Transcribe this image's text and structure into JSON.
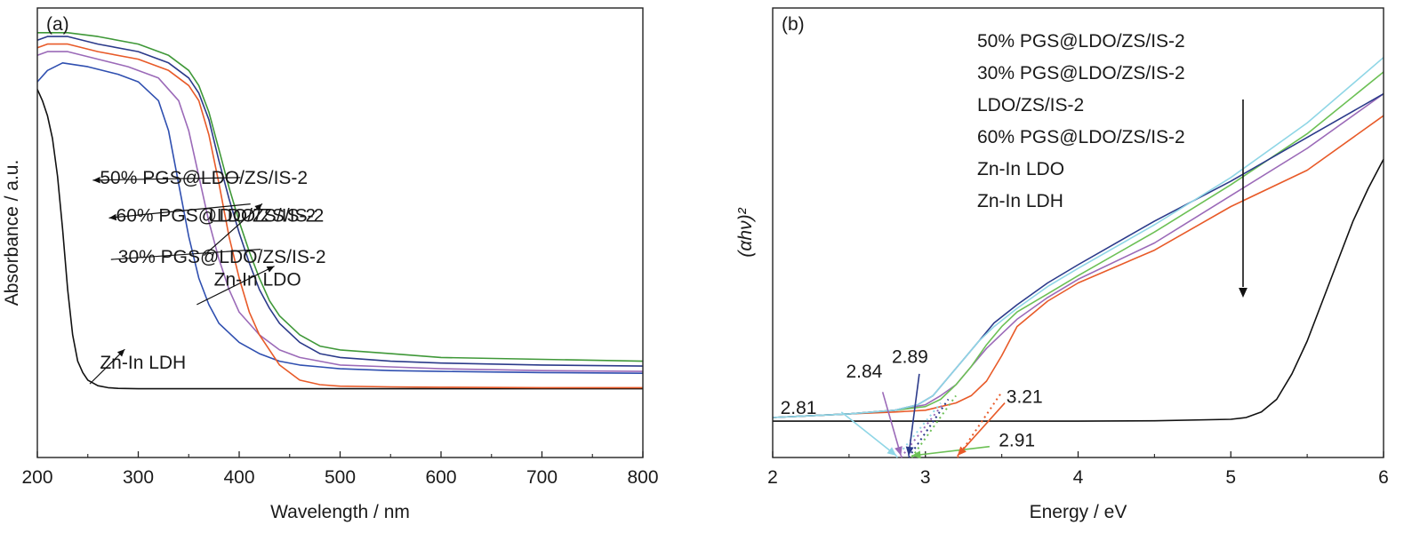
{
  "chart_data": [
    {
      "panel": "(a)",
      "type": "line",
      "xlabel": "Wavelength / nm",
      "ylabel": "Absorbance / a.u.",
      "xlim": [
        200,
        800
      ],
      "ylim": [
        0,
        1.0
      ],
      "xticks": [
        "200",
        "300",
        "400",
        "500",
        "600",
        "700",
        "800"
      ],
      "y_tick_labels_shown": false,
      "series": [
        {
          "key": "ldh",
          "color": "#111111",
          "x": [
            200,
            205,
            210,
            215,
            220,
            225,
            230,
            235,
            240,
            245,
            250,
            260,
            270,
            280,
            300,
            320,
            350,
            400,
            500,
            600,
            700,
            800
          ],
          "y": [
            0.85,
            0.82,
            0.78,
            0.72,
            0.62,
            0.48,
            0.32,
            0.2,
            0.13,
            0.1,
            0.08,
            0.065,
            0.06,
            0.058,
            0.057,
            0.057,
            0.057,
            0.057,
            0.057,
            0.057,
            0.057,
            0.057
          ]
        },
        {
          "key": "ldo",
          "color": "#2f4fb0",
          "x": [
            200,
            210,
            225,
            250,
            280,
            300,
            320,
            330,
            340,
            350,
            360,
            370,
            380,
            400,
            420,
            440,
            460,
            480,
            500,
            550,
            600,
            700,
            800
          ],
          "y": [
            0.87,
            0.9,
            0.92,
            0.91,
            0.89,
            0.87,
            0.82,
            0.74,
            0.6,
            0.46,
            0.35,
            0.28,
            0.23,
            0.18,
            0.15,
            0.13,
            0.12,
            0.115,
            0.11,
            0.105,
            0.103,
            0.1,
            0.098
          ]
        },
        {
          "key": "ldozs",
          "color": "#9b6ab8",
          "x": [
            200,
            210,
            230,
            260,
            290,
            320,
            340,
            350,
            360,
            370,
            380,
            390,
            400,
            420,
            440,
            460,
            480,
            500,
            550,
            600,
            700,
            800
          ],
          "y": [
            0.94,
            0.95,
            0.95,
            0.93,
            0.91,
            0.88,
            0.82,
            0.74,
            0.62,
            0.5,
            0.4,
            0.32,
            0.26,
            0.2,
            0.16,
            0.14,
            0.13,
            0.12,
            0.115,
            0.11,
            0.105,
            0.103
          ]
        },
        {
          "key": "p30",
          "color": "#e85a28",
          "x": [
            200,
            210,
            230,
            260,
            300,
            330,
            350,
            360,
            370,
            380,
            390,
            400,
            410,
            420,
            440,
            460,
            480,
            500,
            550,
            600,
            700,
            800
          ],
          "y": [
            0.96,
            0.97,
            0.97,
            0.95,
            0.93,
            0.9,
            0.86,
            0.82,
            0.73,
            0.6,
            0.46,
            0.35,
            0.26,
            0.2,
            0.12,
            0.08,
            0.068,
            0.064,
            0.062,
            0.061,
            0.06,
            0.06
          ]
        },
        {
          "key": "p60",
          "color": "#2b3a8a",
          "x": [
            200,
            210,
            230,
            260,
            300,
            330,
            350,
            360,
            370,
            380,
            390,
            400,
            410,
            420,
            430,
            440,
            460,
            480,
            500,
            550,
            600,
            700,
            800
          ],
          "y": [
            0.98,
            0.99,
            0.99,
            0.97,
            0.95,
            0.92,
            0.88,
            0.84,
            0.77,
            0.66,
            0.56,
            0.47,
            0.39,
            0.32,
            0.27,
            0.23,
            0.18,
            0.15,
            0.14,
            0.13,
            0.125,
            0.12,
            0.117
          ]
        },
        {
          "key": "p50",
          "color": "#3f9838",
          "x": [
            200,
            210,
            230,
            260,
            300,
            330,
            350,
            360,
            370,
            380,
            390,
            400,
            410,
            420,
            430,
            440,
            460,
            480,
            500,
            550,
            600,
            700,
            800
          ],
          "y": [
            1.0,
            1.0,
            1.0,
            0.99,
            0.97,
            0.94,
            0.9,
            0.86,
            0.79,
            0.69,
            0.59,
            0.5,
            0.42,
            0.35,
            0.29,
            0.25,
            0.2,
            0.17,
            0.16,
            0.15,
            0.14,
            0.135,
            0.13
          ]
        }
      ],
      "annotations": [
        {
          "key": "p50",
          "text": "50% PGS@LDO/ZS/IS-2",
          "x": 262,
          "y": 0.6,
          "ax": 410,
          "ay": 0.64
        },
        {
          "key": "p60",
          "text": "60% PGS@LDO/ZS/IS-2",
          "x": 278,
          "y": 0.5,
          "ax": 420,
          "ay": 0.57
        },
        {
          "key": "p30",
          "text": "30% PGS@LDO/ZS/IS-2",
          "x": 280,
          "y": 0.39,
          "ax": 430,
          "ay": 0.45
        },
        {
          "key": "ldozs",
          "text": "LDO/ZS/IS-2",
          "x": 370,
          "y": 0.5,
          "ax": 365,
          "ay": 0.41
        },
        {
          "key": "ldo",
          "text": "Zn-In LDO",
          "x": 375,
          "y": 0.33,
          "ax": 358,
          "ay": 0.28
        },
        {
          "key": "ldh",
          "text": "Zn-In LDH",
          "x": 262,
          "y": 0.11,
          "ax": 252,
          "ay": 0.07
        }
      ]
    },
    {
      "panel": "(b)",
      "type": "line",
      "xlabel": "Energy / eV",
      "ylabel": "(αhν)²",
      "xlim": [
        2,
        6
      ],
      "ylim": [
        -0.1,
        1.0
      ],
      "xticks": [
        "2",
        "3",
        "4",
        "5",
        "6"
      ],
      "y_tick_labels_shown": false,
      "legend_text": [
        "50% PGS@LDO/ZS/IS-2",
        "30% PGS@LDO/ZS/IS-2",
        "LDO/ZS/IS-2",
        "60% PGS@LDO/ZS/IS-2",
        "Zn-In LDO",
        "Zn-In LDH"
      ],
      "trend_arrow_direction": "down",
      "series": [
        {
          "key": "ldh",
          "color": "#111111",
          "x": [
            2,
            2.5,
            3,
            3.5,
            4,
            4.5,
            5,
            5.1,
            5.2,
            5.3,
            5.4,
            5.5,
            5.6,
            5.7,
            5.8,
            5.9,
            6
          ],
          "y": [
            0.0,
            0.0,
            0.0,
            0.0,
            0.0,
            0.001,
            0.005,
            0.01,
            0.025,
            0.06,
            0.13,
            0.22,
            0.33,
            0.44,
            0.55,
            0.64,
            0.72
          ]
        },
        {
          "key": "ldo",
          "color": "#e85a28",
          "x": [
            2,
            2.5,
            2.8,
            3,
            3.2,
            3.3,
            3.4,
            3.5,
            3.6,
            3.8,
            4,
            4.5,
            5,
            5.5,
            6
          ],
          "y": [
            0.01,
            0.02,
            0.025,
            0.03,
            0.05,
            0.07,
            0.11,
            0.18,
            0.26,
            0.33,
            0.38,
            0.47,
            0.59,
            0.69,
            0.84
          ]
        },
        {
          "key": "p60",
          "color": "#9b6ab8",
          "x": [
            2,
            2.5,
            2.8,
            3,
            3.1,
            3.2,
            3.3,
            3.4,
            3.5,
            3.6,
            3.8,
            4,
            4.5,
            5,
            5.5,
            6
          ],
          "y": [
            0.01,
            0.02,
            0.03,
            0.045,
            0.07,
            0.1,
            0.15,
            0.2,
            0.24,
            0.28,
            0.34,
            0.39,
            0.49,
            0.62,
            0.75,
            0.9
          ]
        },
        {
          "key": "ldozs",
          "color": "#6cc055",
          "x": [
            2,
            2.5,
            2.8,
            3,
            3.1,
            3.2,
            3.3,
            3.4,
            3.5,
            3.6,
            3.8,
            4,
            4.5,
            5,
            5.5,
            6
          ],
          "y": [
            0.01,
            0.02,
            0.03,
            0.04,
            0.06,
            0.1,
            0.15,
            0.21,
            0.26,
            0.3,
            0.35,
            0.4,
            0.52,
            0.65,
            0.79,
            0.96
          ]
        },
        {
          "key": "p30",
          "color": "#2b3a8a",
          "x": [
            2,
            2.5,
            2.8,
            2.95,
            3.05,
            3.15,
            3.25,
            3.35,
            3.45,
            3.6,
            3.8,
            4,
            4.5,
            5,
            5.5,
            6
          ],
          "y": [
            0.01,
            0.02,
            0.03,
            0.045,
            0.07,
            0.12,
            0.17,
            0.22,
            0.27,
            0.32,
            0.38,
            0.43,
            0.55,
            0.66,
            0.78,
            0.9
          ]
        },
        {
          "key": "p50",
          "color": "#8fd6e6",
          "x": [
            2,
            2.5,
            2.8,
            2.95,
            3.05,
            3.15,
            3.25,
            3.35,
            3.45,
            3.6,
            3.8,
            4,
            4.5,
            5,
            5.5,
            6
          ],
          "y": [
            0.01,
            0.02,
            0.03,
            0.045,
            0.07,
            0.12,
            0.17,
            0.22,
            0.26,
            0.31,
            0.37,
            0.42,
            0.54,
            0.67,
            0.82,
            1.0
          ]
        }
      ],
      "tangents": [
        {
          "color": "#8fd6e6",
          "x1": 2.81,
          "y1": -0.1,
          "x2": 3.1,
          "y2": 0.05
        },
        {
          "color": "#9b6ab8",
          "x1": 2.84,
          "y1": -0.1,
          "x2": 3.12,
          "y2": 0.05
        },
        {
          "color": "#2b3a8a",
          "x1": 2.89,
          "y1": -0.1,
          "x2": 3.15,
          "y2": 0.06
        },
        {
          "color": "#6cc055",
          "x1": 2.91,
          "y1": -0.1,
          "x2": 3.2,
          "y2": 0.07
        },
        {
          "color": "#e85a28",
          "x1": 3.21,
          "y1": -0.1,
          "x2": 3.5,
          "y2": 0.08
        }
      ],
      "gap_labels": [
        {
          "text": "2.81",
          "color": "#8fd6e6",
          "tx": 2.05,
          "ty": 0.02,
          "ax": 2.81,
          "ay": -0.1,
          "sx": 2.45,
          "sy": 0.025
        },
        {
          "text": "2.84",
          "color": "#9b6ab8",
          "tx": 2.48,
          "ty": 0.12,
          "ax": 2.84,
          "ay": -0.1,
          "sx": 2.72,
          "sy": 0.08
        },
        {
          "text": "2.89",
          "color": "#2b3a8a",
          "tx": 2.78,
          "ty": 0.16,
          "ax": 2.89,
          "ay": -0.1,
          "sx": 2.96,
          "sy": 0.13
        },
        {
          "text": "2.91",
          "color": "#6cc055",
          "tx": 3.48,
          "ty": -0.07,
          "ax": 2.91,
          "ay": -0.1,
          "sx": 3.42,
          "sy": -0.07
        },
        {
          "text": "3.21",
          "color": "#e85a28",
          "tx": 3.53,
          "ty": 0.05,
          "ax": 3.21,
          "ay": -0.1,
          "sx": 3.52,
          "sy": 0.05
        }
      ]
    }
  ]
}
